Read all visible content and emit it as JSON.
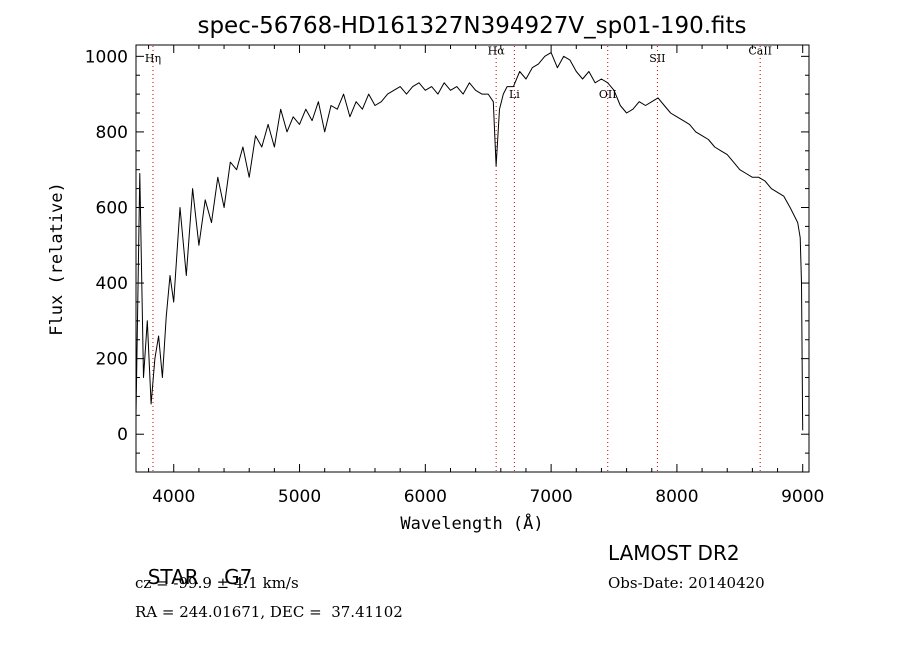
{
  "chart_data": {
    "type": "line",
    "title": "spec-56768-HD161327N394927V_sp01-190.fits",
    "xlabel": "Wavelength (Å)",
    "ylabel": "Flux (relative)",
    "xlim": [
      3700,
      9050
    ],
    "ylim": [
      -100,
      1030
    ],
    "xticks": [
      4000,
      5000,
      6000,
      7000,
      8000,
      9000
    ],
    "yticks": [
      0,
      200,
      400,
      600,
      800,
      1000
    ],
    "grid": false,
    "legend": "none",
    "series": [
      {
        "x": [
          3700,
          3730,
          3760,
          3790,
          3820,
          3850,
          3880,
          3910,
          3940,
          3970,
          4000,
          4050,
          4100,
          4150,
          4200,
          4250,
          4300,
          4350,
          4400,
          4450,
          4500,
          4550,
          4600,
          4650,
          4700,
          4750,
          4800,
          4850,
          4900,
          4950,
          5000,
          5050,
          5100,
          5150,
          5200,
          5250,
          5300,
          5350,
          5400,
          5450,
          5500,
          5550,
          5600,
          5650,
          5700,
          5750,
          5800,
          5850,
          5900,
          5950,
          6000,
          6050,
          6100,
          6150,
          6200,
          6250,
          6300,
          6350,
          6400,
          6450,
          6500,
          6540,
          6563,
          6590,
          6620,
          6650,
          6700,
          6750,
          6800,
          6850,
          6900,
          6950,
          7000,
          7050,
          7100,
          7150,
          7200,
          7250,
          7300,
          7350,
          7400,
          7450,
          7500,
          7550,
          7600,
          7650,
          7700,
          7750,
          7800,
          7850,
          7900,
          7950,
          8000,
          8050,
          8100,
          8150,
          8200,
          8250,
          8300,
          8350,
          8400,
          8450,
          8500,
          8550,
          8600,
          8650,
          8700,
          8750,
          8800,
          8850,
          8900,
          8930,
          8960,
          8980,
          8990,
          9000
        ],
        "y": [
          50,
          690,
          150,
          300,
          80,
          200,
          260,
          150,
          310,
          420,
          350,
          600,
          420,
          650,
          500,
          620,
          560,
          680,
          600,
          720,
          700,
          760,
          680,
          790,
          760,
          820,
          760,
          860,
          800,
          840,
          820,
          860,
          830,
          880,
          800,
          870,
          860,
          900,
          840,
          880,
          860,
          900,
          870,
          880,
          900,
          910,
          920,
          900,
          920,
          930,
          910,
          920,
          900,
          930,
          910,
          920,
          900,
          930,
          910,
          900,
          900,
          880,
          710,
          860,
          900,
          920,
          920,
          960,
          940,
          970,
          980,
          1000,
          1010,
          970,
          1000,
          990,
          960,
          940,
          960,
          930,
          940,
          930,
          910,
          870,
          850,
          860,
          880,
          870,
          880,
          890,
          870,
          850,
          840,
          830,
          820,
          800,
          790,
          780,
          760,
          750,
          740,
          720,
          700,
          690,
          680,
          680,
          670,
          650,
          640,
          630,
          600,
          580,
          560,
          520,
          400,
          10
        ]
      }
    ],
    "annotations": [
      {
        "label": "Hη",
        "x": 3835,
        "label_y": 985
      },
      {
        "label": "Hα",
        "x": 6563,
        "label_y": 1005
      },
      {
        "label": "Li",
        "x": 6708,
        "label_y": 890
      },
      {
        "label": "OII",
        "x": 7450,
        "label_y": 890
      },
      {
        "label": "SII",
        "x": 7845,
        "label_y": 985
      },
      {
        "label": "CaII",
        "x": 8662,
        "label_y": 1005
      }
    ],
    "colors": {
      "spectrum": "#000000",
      "line_markers": "#cc0000",
      "axes": "#000000"
    }
  },
  "info": {
    "object": "STAR",
    "subclass": "G7",
    "cz": "cz = -99.9 ± 4.1 km/s",
    "coords": "RA = 244.01671, DEC =  37.41102",
    "survey": "LAMOST DR2",
    "obs_date": "Obs-Date: 20140420"
  }
}
